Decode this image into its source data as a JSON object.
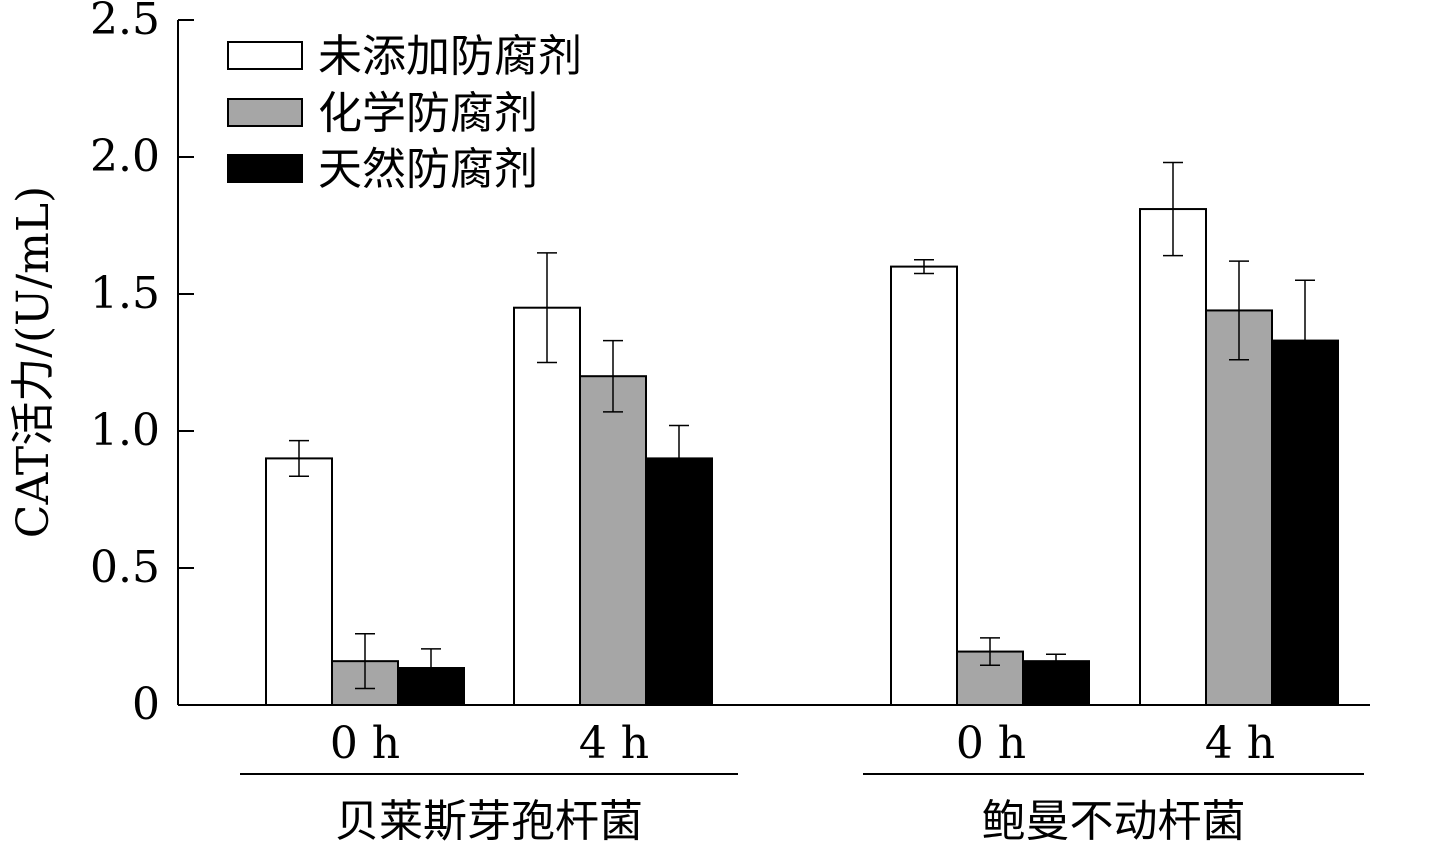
{
  "chart_data": {
    "type": "bar",
    "ylabel": "CAT活力/(U/mL)",
    "xlabel": "",
    "ylim": [
      0,
      2.5
    ],
    "yticks": [
      0,
      0.5,
      1.0,
      1.5,
      2.0,
      2.5
    ],
    "ytick_labels": [
      "0",
      "0.5",
      "1.0",
      "1.5",
      "2.0",
      "2.5"
    ],
    "grid": false,
    "legend_position": "top-left",
    "colors": {
      "未添加防腐剂": "#ffffff",
      "化学防腐剂": "#a6a6a6",
      "天然防腐剂": "#000000"
    },
    "legend": [
      "未添加防腐剂",
      "化学防腐剂",
      "天然防腐剂"
    ],
    "groups": [
      {
        "name": "贝莱斯芽孢杆菌",
        "categories": [
          {
            "label": "0 h",
            "values": [
              0.9,
              0.16,
              0.135
            ],
            "errors": [
              0.065,
              0.1,
              0.07
            ]
          },
          {
            "label": "4 h",
            "values": [
              1.45,
              1.2,
              0.9
            ],
            "errors": [
              0.2,
              0.13,
              0.12
            ]
          }
        ]
      },
      {
        "name": "鲍曼不动杆菌",
        "categories": [
          {
            "label": "0 h",
            "values": [
              1.6,
              0.195,
              0.16
            ],
            "errors": [
              0.025,
              0.05,
              0.025
            ]
          },
          {
            "label": "4 h",
            "values": [
              1.81,
              1.44,
              1.33
            ],
            "errors": [
              0.17,
              0.18,
              0.22
            ]
          }
        ]
      }
    ]
  }
}
